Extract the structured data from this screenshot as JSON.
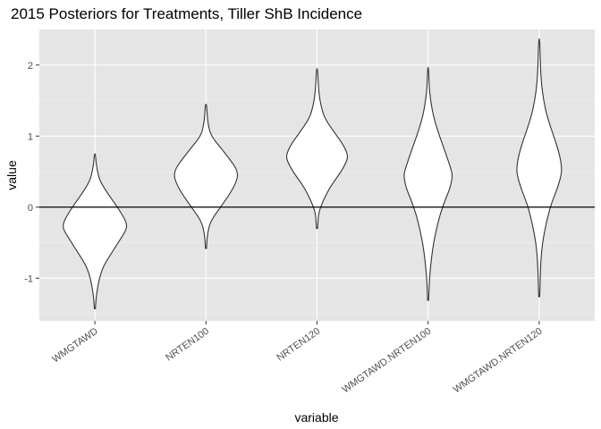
{
  "chart_data": {
    "type": "violin",
    "title": "2015 Posteriors for Treatments, Tiller ShB Incidence",
    "xlabel": "variable",
    "ylabel": "value",
    "ylim": [
      -1.6,
      2.5
    ],
    "yticks": [
      -1,
      0,
      1,
      2
    ],
    "ytick_labels": [
      "-1",
      "0",
      "1",
      "2"
    ],
    "grid": true,
    "reference_line": 0,
    "background": "#e5e5e5",
    "categories": [
      "WMGTAWD",
      "NRTEN100",
      "NRTEN120",
      "WMGTAWD.NRTEN100",
      "WMGTAWD.NRTEN120"
    ],
    "series": [
      {
        "category": "WMGTAWD",
        "min": -1.43,
        "max": 0.75,
        "profile": [
          [
            -1.43,
            0.01
          ],
          [
            -1.3,
            0.02
          ],
          [
            -1.15,
            0.05
          ],
          [
            -1.0,
            0.09
          ],
          [
            -0.85,
            0.16
          ],
          [
            -0.75,
            0.24
          ],
          [
            -0.65,
            0.33
          ],
          [
            -0.55,
            0.42
          ],
          [
            -0.45,
            0.51
          ],
          [
            -0.35,
            0.6
          ],
          [
            -0.28,
            0.64
          ],
          [
            -0.2,
            0.62
          ],
          [
            -0.1,
            0.54
          ],
          [
            0.0,
            0.45
          ],
          [
            0.1,
            0.35
          ],
          [
            0.2,
            0.25
          ],
          [
            0.3,
            0.16
          ],
          [
            0.38,
            0.1
          ],
          [
            0.45,
            0.07
          ],
          [
            0.55,
            0.04
          ],
          [
            0.65,
            0.02
          ],
          [
            0.75,
            0.01
          ]
        ]
      },
      {
        "category": "NRTEN100",
        "min": -0.58,
        "max": 1.45,
        "profile": [
          [
            -0.58,
            0.01
          ],
          [
            -0.45,
            0.02
          ],
          [
            -0.35,
            0.04
          ],
          [
            -0.25,
            0.07
          ],
          [
            -0.15,
            0.14
          ],
          [
            -0.05,
            0.24
          ],
          [
            0.05,
            0.34
          ],
          [
            0.15,
            0.44
          ],
          [
            0.25,
            0.53
          ],
          [
            0.35,
            0.6
          ],
          [
            0.45,
            0.64
          ],
          [
            0.55,
            0.6
          ],
          [
            0.65,
            0.5
          ],
          [
            0.75,
            0.39
          ],
          [
            0.85,
            0.28
          ],
          [
            0.95,
            0.16
          ],
          [
            1.05,
            0.08
          ],
          [
            1.15,
            0.05
          ],
          [
            1.25,
            0.03
          ],
          [
            1.35,
            0.02
          ],
          [
            1.45,
            0.01
          ]
        ]
      },
      {
        "category": "NRTEN120",
        "min": -0.3,
        "max": 1.95,
        "profile": [
          [
            -0.3,
            0.01
          ],
          [
            -0.2,
            0.02
          ],
          [
            -0.1,
            0.03
          ],
          [
            0.0,
            0.07
          ],
          [
            0.1,
            0.13
          ],
          [
            0.2,
            0.2
          ],
          [
            0.3,
            0.28
          ],
          [
            0.4,
            0.38
          ],
          [
            0.5,
            0.48
          ],
          [
            0.6,
            0.56
          ],
          [
            0.7,
            0.62
          ],
          [
            0.8,
            0.58
          ],
          [
            0.9,
            0.5
          ],
          [
            1.0,
            0.4
          ],
          [
            1.1,
            0.3
          ],
          [
            1.2,
            0.2
          ],
          [
            1.3,
            0.13
          ],
          [
            1.4,
            0.09
          ],
          [
            1.5,
            0.06
          ],
          [
            1.6,
            0.04
          ],
          [
            1.7,
            0.03
          ],
          [
            1.8,
            0.02
          ],
          [
            1.95,
            0.01
          ]
        ]
      },
      {
        "category": "WMGTAWD.NRTEN100",
        "min": -1.31,
        "max": 1.97,
        "profile": [
          [
            -1.31,
            0.01
          ],
          [
            -1.1,
            0.02
          ],
          [
            -0.9,
            0.04
          ],
          [
            -0.7,
            0.07
          ],
          [
            -0.5,
            0.11
          ],
          [
            -0.3,
            0.17
          ],
          [
            -0.1,
            0.24
          ],
          [
            0.1,
            0.34
          ],
          [
            0.2,
            0.4
          ],
          [
            0.3,
            0.45
          ],
          [
            0.45,
            0.49
          ],
          [
            0.55,
            0.45
          ],
          [
            0.7,
            0.38
          ],
          [
            0.9,
            0.28
          ],
          [
            1.1,
            0.18
          ],
          [
            1.3,
            0.1
          ],
          [
            1.5,
            0.05
          ],
          [
            1.7,
            0.02
          ],
          [
            1.97,
            0.01
          ]
        ]
      },
      {
        "category": "WMGTAWD.NRTEN120",
        "min": -1.26,
        "max": 2.37,
        "profile": [
          [
            -1.26,
            0.01
          ],
          [
            -1.0,
            0.02
          ],
          [
            -0.8,
            0.03
          ],
          [
            -0.6,
            0.05
          ],
          [
            -0.4,
            0.09
          ],
          [
            -0.2,
            0.15
          ],
          [
            0.0,
            0.22
          ],
          [
            0.15,
            0.3
          ],
          [
            0.3,
            0.38
          ],
          [
            0.45,
            0.44
          ],
          [
            0.55,
            0.45
          ],
          [
            0.7,
            0.42
          ],
          [
            0.9,
            0.34
          ],
          [
            1.1,
            0.24
          ],
          [
            1.3,
            0.15
          ],
          [
            1.5,
            0.09
          ],
          [
            1.7,
            0.05
          ],
          [
            1.9,
            0.03
          ],
          [
            2.1,
            0.02
          ],
          [
            2.37,
            0.01
          ]
        ]
      }
    ]
  }
}
